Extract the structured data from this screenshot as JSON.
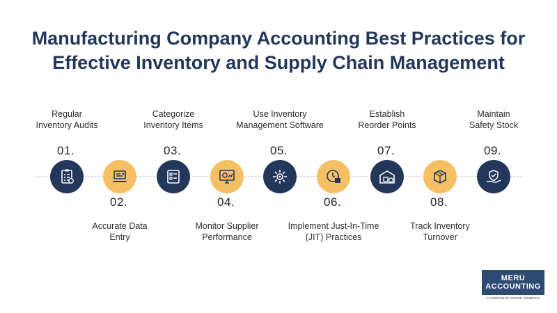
{
  "title": {
    "line1": "Manufacturing Company Accounting Best Practices for",
    "line2": "Effective Inventory and Supply Chain Management"
  },
  "steps": [
    {
      "number": "01.",
      "label_lines": [
        "Regular",
        "Inventory Audits"
      ],
      "icon": "clipboard-checklist-icon",
      "color": "#22375a"
    },
    {
      "number": "02.",
      "label_lines": [
        "Accurate Data",
        "Entry"
      ],
      "icon": "laptop-data-entry-icon",
      "color": "#f5c064"
    },
    {
      "number": "03.",
      "label_lines": [
        "Categorize",
        "Inventory Items"
      ],
      "icon": "categorized-boxes-icon",
      "color": "#22375a"
    },
    {
      "number": "04.",
      "label_lines": [
        "Monitor Supplier",
        "Performance"
      ],
      "icon": "monitor-performance-icon",
      "color": "#f5c064"
    },
    {
      "number": "05.",
      "label_lines": [
        "Use Inventory",
        "Management Software"
      ],
      "icon": "software-gear-icon",
      "color": "#22375a"
    },
    {
      "number": "06.",
      "label_lines": [
        "Implement Just-In-Time",
        "(JIT) Practices"
      ],
      "icon": "jit-clock-box-icon",
      "color": "#f5c064"
    },
    {
      "number": "07.",
      "label_lines": [
        "Establish",
        "Reorder Points"
      ],
      "icon": "warehouse-reorder-icon",
      "color": "#22375a"
    },
    {
      "number": "08.",
      "label_lines": [
        "Track Inventory",
        "Turnover"
      ],
      "icon": "box-turnover-icon",
      "color": "#f5c064"
    },
    {
      "number": "09.",
      "label_lines": [
        "Maintain",
        "Safety Stock"
      ],
      "icon": "hand-shield-icon",
      "color": "#22375a"
    }
  ],
  "logo": {
    "line1": "MERU",
    "line2": "ACCOUNTING",
    "tagline": "A CONFIANCE GROUP COMPANY"
  }
}
